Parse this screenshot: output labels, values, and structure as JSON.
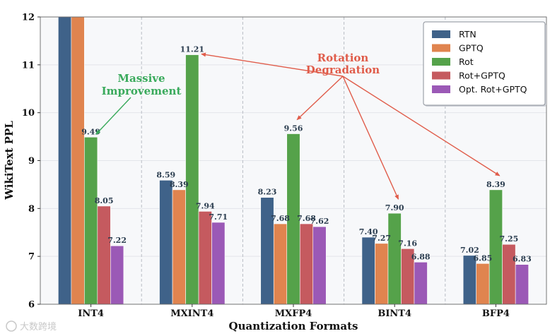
{
  "chart_data": {
    "type": "bar",
    "xlabel": "Quantization Formats",
    "ylabel": "WikiText PPL",
    "ylim": [
      6,
      12
    ],
    "yticks": [
      6,
      7,
      8,
      9,
      10,
      11,
      12
    ],
    "categories": [
      "INT4",
      "MXINT4",
      "MXFP4",
      "BINT4",
      "BFP4"
    ],
    "series": [
      {
        "name": "RTN",
        "color": "#3f6289",
        "values": [
          12.0,
          8.59,
          8.23,
          7.4,
          7.02
        ],
        "labels": [
          "",
          "8.59",
          "8.23",
          "7.40",
          "7.02"
        ]
      },
      {
        "name": "GPTQ",
        "color": "#e0844f",
        "values": [
          12.0,
          8.39,
          7.68,
          7.27,
          6.85
        ],
        "labels": [
          "",
          "8.39",
          "7.68",
          "7.27",
          "6.85"
        ]
      },
      {
        "name": "Rot",
        "color": "#55a24a",
        "values": [
          9.49,
          11.21,
          9.56,
          7.9,
          8.39
        ],
        "labels": [
          "9.49",
          "11.21",
          "9.56",
          "7.90",
          "8.39"
        ]
      },
      {
        "name": "Rot+GPTQ",
        "color": "#c55a5f",
        "values": [
          8.05,
          7.94,
          7.68,
          7.16,
          7.25
        ],
        "labels": [
          "8.05",
          "7.94",
          "7.68",
          "7.16",
          "7.25"
        ]
      },
      {
        "name": "Opt. Rot+GPTQ",
        "color": "#9b59b6",
        "values": [
          7.22,
          7.71,
          7.62,
          6.88,
          6.83
        ],
        "labels": [
          "7.22",
          "7.71",
          "7.62",
          "6.88",
          "6.83"
        ]
      }
    ],
    "legend_position": "top-right",
    "annotations": [
      {
        "id": "massive",
        "lines": [
          "Massive",
          "Improvement"
        ],
        "color": "#3aaa5c",
        "targets": [
          {
            "category": 0,
            "series": 2
          }
        ]
      },
      {
        "id": "rotation",
        "lines": [
          "Rotation",
          "Degradation"
        ],
        "color": "#e05c4a",
        "targets": [
          {
            "category": 1,
            "series": 2
          },
          {
            "category": 2,
            "series": 2
          },
          {
            "category": 3,
            "series": 2
          },
          {
            "category": 4,
            "series": 2
          }
        ]
      }
    ]
  },
  "watermark": "大数跨境"
}
